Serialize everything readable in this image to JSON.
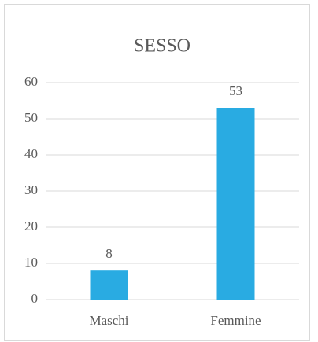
{
  "chart_data": {
    "type": "bar",
    "title": "SESSO",
    "categories": [
      "Maschi",
      "Femmine"
    ],
    "values": [
      8,
      53
    ],
    "color": "#29abe2",
    "ylim": [
      0,
      60
    ],
    "yticks": [
      0,
      10,
      20,
      30,
      40,
      50,
      60
    ],
    "grid": true
  }
}
